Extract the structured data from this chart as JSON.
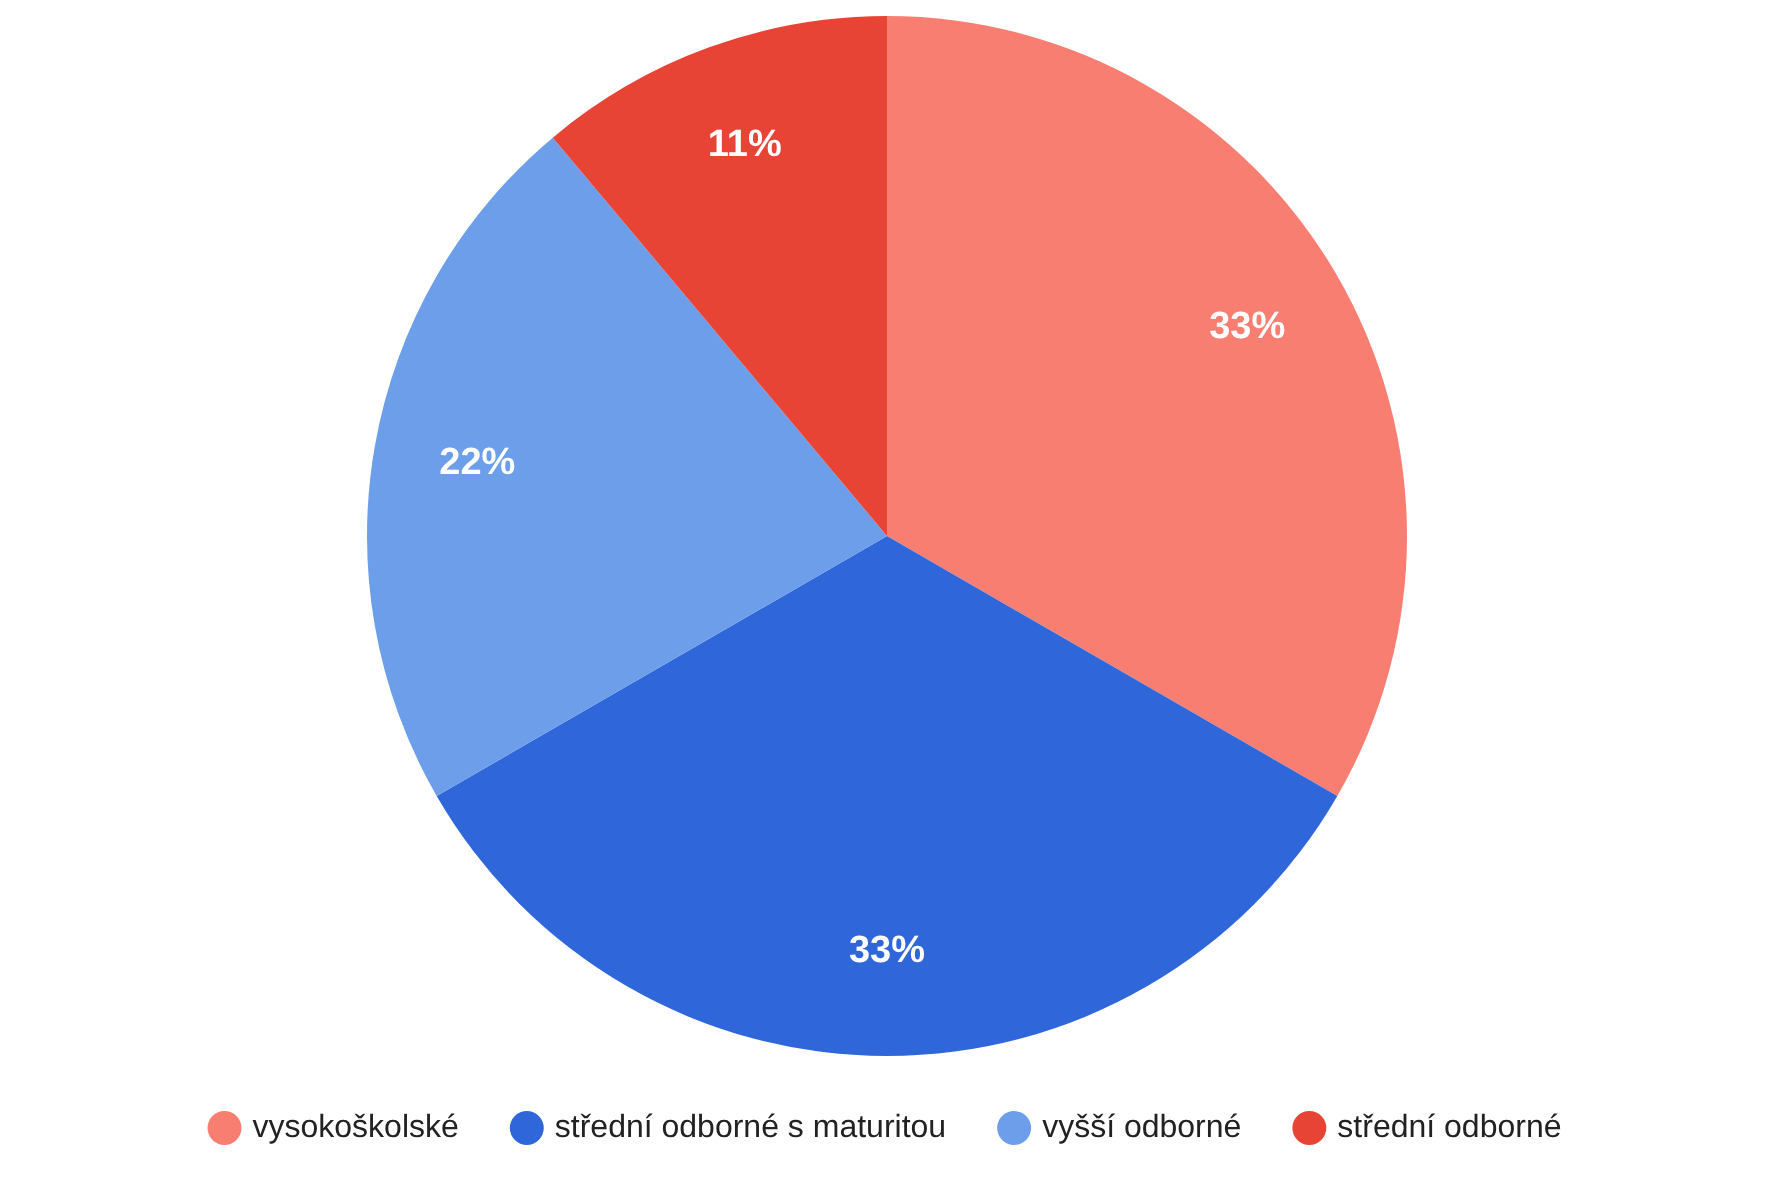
{
  "chart_data": {
    "type": "pie",
    "categories": [
      "vysokoškolské",
      "střední odborné s maturitou",
      "vyšší odborné",
      "střední odborné"
    ],
    "values": [
      33,
      33,
      22,
      11
    ],
    "colors": [
      "#f97e72",
      "#2f67db",
      "#6c9eea",
      "#e84436"
    ],
    "value_labels": [
      "33%",
      "33%",
      "22%",
      "11%"
    ],
    "legend": "bottom"
  }
}
